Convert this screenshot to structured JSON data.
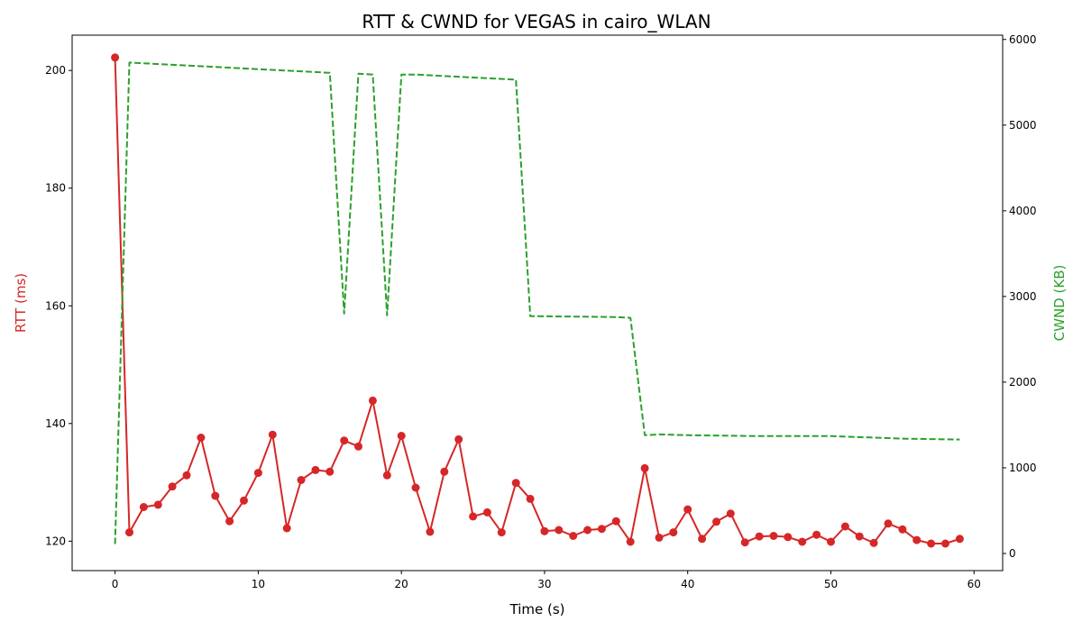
{
  "chart_data": {
    "type": "line",
    "title": "RTT & CWND for VEGAS in cairo_WLAN",
    "xlabel": "Time (s)",
    "ylabel_left": "RTT (ms)",
    "ylabel_right": "CWND (KB)",
    "xlim": [
      -3,
      62
    ],
    "ylim_left": [
      115,
      206
    ],
    "ylim_right": [
      -200,
      6050
    ],
    "x_ticks": [
      0,
      10,
      20,
      30,
      40,
      50,
      60
    ],
    "y_ticks_left": [
      120,
      140,
      160,
      180,
      200
    ],
    "y_ticks_right": [
      0,
      1000,
      2000,
      3000,
      4000,
      5000,
      6000
    ],
    "grid": false,
    "colors": {
      "rtt": "#d62728",
      "cwnd": "#2ca02c"
    },
    "series": [
      {
        "name": "RTT (ms)",
        "axis": "left",
        "style": "solid-line-with-markers",
        "x": [
          0,
          1,
          2,
          3,
          4,
          5,
          6,
          7,
          8,
          9,
          10,
          11,
          12,
          13,
          14,
          15,
          16,
          17,
          18,
          19,
          20,
          21,
          22,
          23,
          24,
          25,
          26,
          27,
          28,
          29,
          30,
          31,
          32,
          33,
          34,
          35,
          36,
          37,
          38,
          39,
          40,
          41,
          42,
          43,
          44,
          45,
          46,
          47,
          48,
          49,
          50,
          51,
          52,
          53,
          54,
          55,
          56,
          57,
          58,
          59
        ],
        "values": [
          202.2,
          121.5,
          125.8,
          126.2,
          129.3,
          131.2,
          137.6,
          127.7,
          123.4,
          126.9,
          131.6,
          138.1,
          122.2,
          130.4,
          132.1,
          131.8,
          137.1,
          136.1,
          143.9,
          131.2,
          137.9,
          129.1,
          121.6,
          131.8,
          137.3,
          124.2,
          124.9,
          121.5,
          129.9,
          127.2,
          121.7,
          121.9,
          120.9,
          121.9,
          122.1,
          123.4,
          119.9,
          132.4,
          120.6,
          121.5,
          125.4,
          120.4,
          123.3,
          124.7,
          119.8,
          120.8,
          120.9,
          120.7,
          119.9,
          121.1,
          119.9,
          122.5,
          120.8,
          119.7,
          123.0,
          122.0,
          120.2,
          119.6,
          119.6,
          120.4
        ]
      },
      {
        "name": "CWND (KB)",
        "axis": "right",
        "style": "dashed-line",
        "x": [
          0,
          1,
          15,
          16,
          17,
          18,
          19,
          20,
          21,
          28,
          29,
          35,
          36,
          37,
          38,
          40,
          45,
          50,
          55,
          59
        ],
        "values": [
          110,
          5730,
          5610,
          2800,
          5600,
          5590,
          2780,
          5590,
          5590,
          5530,
          2770,
          2760,
          2750,
          1380,
          1390,
          1380,
          1370,
          1370,
          1340,
          1330
        ]
      }
    ]
  }
}
